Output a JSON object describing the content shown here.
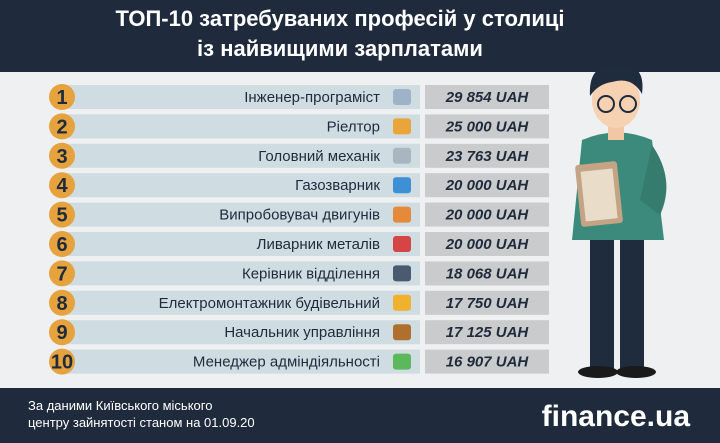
{
  "header": {
    "title_lines": [
      "ТОП-10 затребуваних професій у столиці",
      "із найвищими зарплатами"
    ]
  },
  "rows": [
    {
      "rank": 1,
      "name": "Інженер-програміст",
      "salary": "29 854 UAH"
    },
    {
      "rank": 2,
      "name": "Ріелтор",
      "salary": "25 000 UAH"
    },
    {
      "rank": 3,
      "name": "Головний механік",
      "salary": "23 763 UAH"
    },
    {
      "rank": 4,
      "name": "Газозварник",
      "salary": "20 000 UAH"
    },
    {
      "rank": 5,
      "name": "Випробовувач двигунів",
      "salary": "20 000 UAH"
    },
    {
      "rank": 6,
      "name": "Ливарник металів",
      "salary": "20 000 UAH"
    },
    {
      "rank": 7,
      "name": "Керівник відділення",
      "salary": "18 068 UAH"
    },
    {
      "rank": 8,
      "name": "Електромонтажник будівельний",
      "salary": "17 750 UAH"
    },
    {
      "rank": 9,
      "name": "Начальник управління",
      "salary": "17 125 UAH"
    },
    {
      "rank": 10,
      "name": "Менеджер адміндіяльності",
      "salary": "16 907 UAH"
    }
  ],
  "footer": {
    "source_lines": [
      "За даними Київського міського",
      "центру зайнятості станом на 01.09.20"
    ],
    "logo": "finance.ua"
  }
}
